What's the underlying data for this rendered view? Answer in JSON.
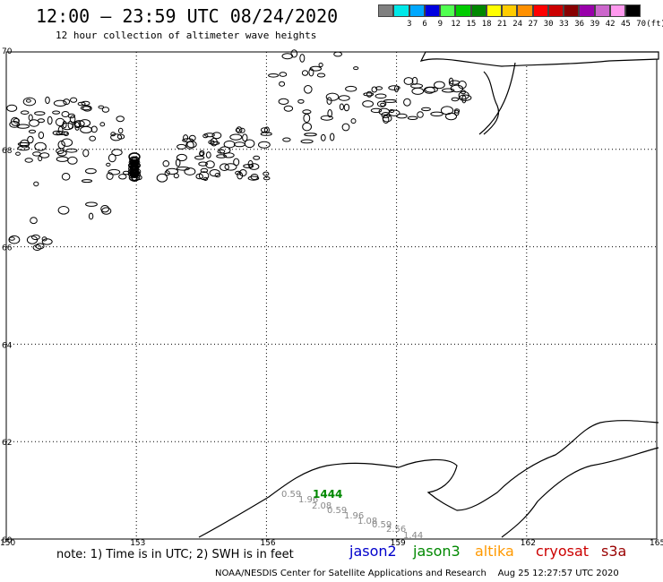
{
  "header": {
    "title": "12:00 – 23:59 UTC 08/24/2020",
    "subtitle": "12 hour collection of altimeter wave heights"
  },
  "legend": {
    "unit": "(ft)",
    "items": [
      {
        "label": "",
        "color": "#808080"
      },
      {
        "label": "3",
        "color": "#00e8e8"
      },
      {
        "label": "6",
        "color": "#00a8ff"
      },
      {
        "label": "9",
        "color": "#0000e0"
      },
      {
        "label": "12",
        "color": "#50ff50"
      },
      {
        "label": "15",
        "color": "#00cc00"
      },
      {
        "label": "18",
        "color": "#008800"
      },
      {
        "label": "21",
        "color": "#ffff00"
      },
      {
        "label": "24",
        "color": "#ffcc00"
      },
      {
        "label": "27",
        "color": "#ff9000"
      },
      {
        "label": "30",
        "color": "#ff0000"
      },
      {
        "label": "33",
        "color": "#cc0000"
      },
      {
        "label": "36",
        "color": "#880000"
      },
      {
        "label": "39",
        "color": "#9900aa"
      },
      {
        "label": "42",
        "color": "#cc66cc"
      },
      {
        "label": "45",
        "color": "#ff99ee"
      },
      {
        "label": "70",
        "color": "#000000"
      }
    ]
  },
  "map": {
    "lon_range": [
      150,
      165
    ],
    "lat_range": [
      60,
      70
    ],
    "lon_labels": [
      "150",
      "153",
      "156",
      "159",
      "162",
      "165"
    ],
    "lat_labels": [
      "70",
      "68",
      "66",
      "64",
      "62",
      "60"
    ]
  },
  "observations": {
    "track_label": "1444",
    "track_color": "#008800",
    "swh_color": "#888888",
    "swh_values": [
      "0.59",
      "1.96",
      "2.08",
      "0.59",
      "1.96",
      "1.08",
      "0.59",
      "2.56",
      "1.44"
    ]
  },
  "note": "note: 1) Time is in UTC; 2) SWH is in feet",
  "satellites": [
    {
      "name": "jason2",
      "color": "#0000cc"
    },
    {
      "name": "jason3",
      "color": "#008800"
    },
    {
      "name": "altika",
      "color": "#ff9900"
    },
    {
      "name": "cryosat",
      "color": "#cc0000"
    },
    {
      "name": "s3a",
      "color": "#990000"
    }
  ],
  "footer": "NOAA/NESDIS Center for Satellite Applications and Research    Aug 25 12:27:57 UTC 2020"
}
